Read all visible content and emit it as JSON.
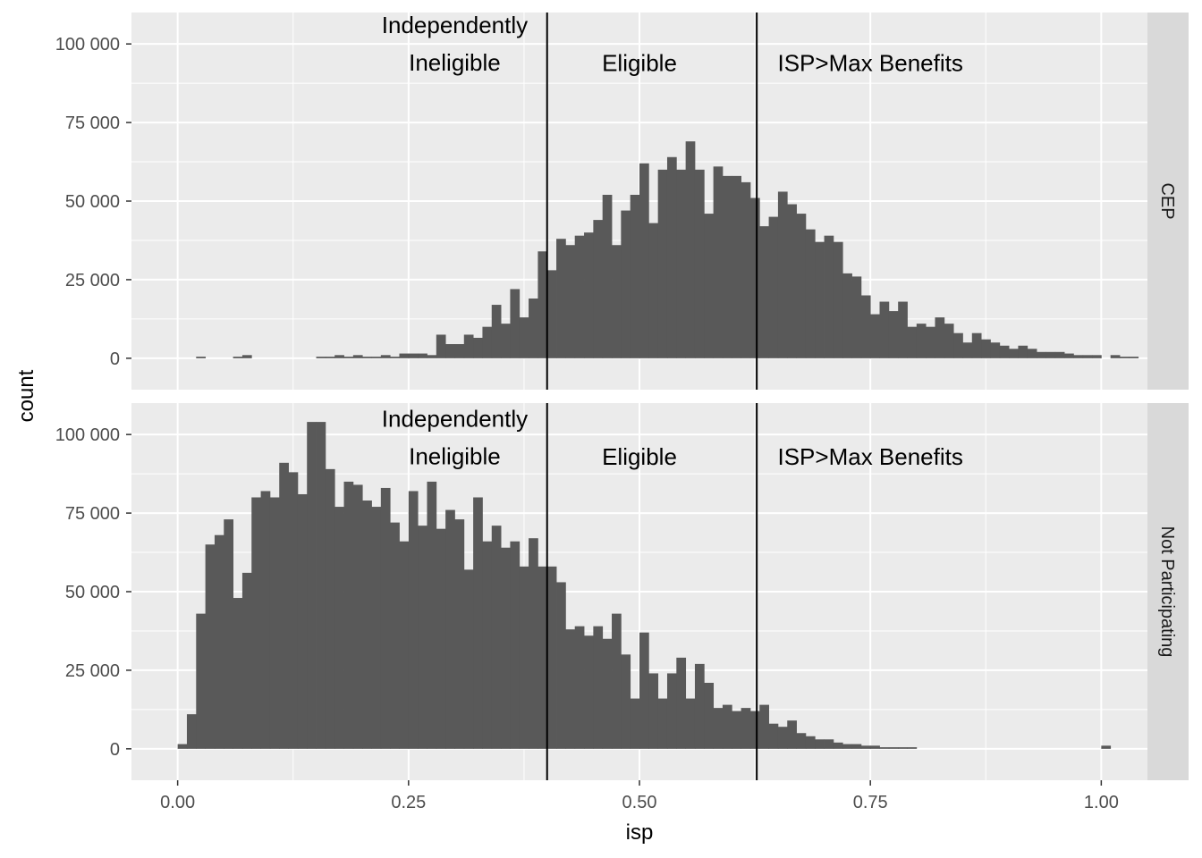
{
  "chart_data": {
    "type": "bar",
    "xlabel": "isp",
    "ylabel": "count",
    "xlim": [
      -0.05,
      1.05
    ],
    "ylim": [
      -10000,
      110000
    ],
    "bin_start": 0.0,
    "bin_width": 0.01,
    "x_ticks": [
      0,
      0.25,
      0.5,
      0.75,
      1.0
    ],
    "x_tick_labels": [
      "0.00",
      "0.25",
      "0.50",
      "0.75",
      "1.00"
    ],
    "y_ticks": [
      0,
      25000,
      50000,
      75000,
      100000
    ],
    "y_tick_labels": [
      "0",
      "25 000",
      "50 000",
      "75 000",
      "100 000"
    ],
    "vlines": [
      0.4,
      0.627
    ],
    "grid": true,
    "colors": {
      "panel_bg": "#ebebeb",
      "grid": "#ffffff",
      "bar": "#595959",
      "strip_bg": "#d9d9d9",
      "vline": "#000000"
    },
    "panels": [
      {
        "facet": "CEP",
        "annotations": [
          {
            "lines": [
              "Independently",
              "Ineligible"
            ],
            "x": 0.3,
            "y": 100000
          },
          {
            "lines": [
              "Eligible"
            ],
            "x": 0.5,
            "y": 94000
          },
          {
            "lines": [
              "ISP>Max Benefits"
            ],
            "x": 0.75,
            "y": 94000
          }
        ],
        "values": [
          0,
          0,
          500,
          0,
          0,
          0,
          500,
          1000,
          0,
          0,
          0,
          0,
          0,
          0,
          0,
          500,
          500,
          1000,
          500,
          1000,
          500,
          500,
          1000,
          500,
          1500,
          1500,
          1500,
          1000,
          7500,
          4500,
          4500,
          7500,
          6500,
          10000,
          17000,
          11000,
          22000,
          13000,
          19000,
          34000,
          28000,
          38000,
          36000,
          39000,
          40000,
          44000,
          52000,
          36000,
          47000,
          52000,
          62000,
          43000,
          60000,
          64000,
          60000,
          69000,
          60000,
          46000,
          61000,
          58000,
          58000,
          56000,
          51000,
          42000,
          45000,
          53000,
          49000,
          46000,
          41000,
          37000,
          39000,
          37000,
          27000,
          26000,
          20000,
          14000,
          18000,
          15000,
          18000,
          10000,
          11000,
          10000,
          13000,
          11000,
          8000,
          5000,
          8000,
          6000,
          5000,
          4000,
          3000,
          4000,
          3000,
          2000,
          2000,
          2000,
          1500,
          1000,
          1000,
          1000,
          0,
          1000,
          500,
          500
        ]
      },
      {
        "facet": "Not Participating",
        "annotations": [
          {
            "lines": [
              "Independently",
              "Ineligible"
            ],
            "x": 0.3,
            "y": 99000
          },
          {
            "lines": [
              "Eligible"
            ],
            "x": 0.5,
            "y": 93000
          },
          {
            "lines": [
              "ISP>Max Benefits"
            ],
            "x": 0.75,
            "y": 93000
          }
        ],
        "values": [
          1500,
          11000,
          43000,
          65000,
          68000,
          73000,
          48000,
          56000,
          80000,
          82000,
          80000,
          91000,
          88000,
          81000,
          104000,
          104000,
          89000,
          77000,
          85000,
          84000,
          79000,
          77000,
          83000,
          72000,
          66000,
          82000,
          71000,
          85000,
          70000,
          76000,
          73000,
          57000,
          80000,
          66000,
          71000,
          64000,
          66000,
          58000,
          67000,
          58000,
          58000,
          53000,
          38000,
          39000,
          36000,
          39000,
          35000,
          43000,
          30000,
          16000,
          37000,
          24000,
          16000,
          24000,
          29000,
          16000,
          27000,
          21000,
          13000,
          14000,
          12000,
          13000,
          12000,
          14000,
          8000,
          7000,
          9000,
          5000,
          4000,
          3000,
          3000,
          2000,
          1500,
          1500,
          1000,
          1000,
          500,
          500,
          500,
          500,
          0,
          0,
          0,
          0,
          0,
          0,
          0,
          0,
          0,
          0,
          0,
          0,
          0,
          0,
          0,
          0,
          0,
          0,
          0,
          0,
          1000,
          0,
          0,
          0
        ]
      }
    ]
  }
}
